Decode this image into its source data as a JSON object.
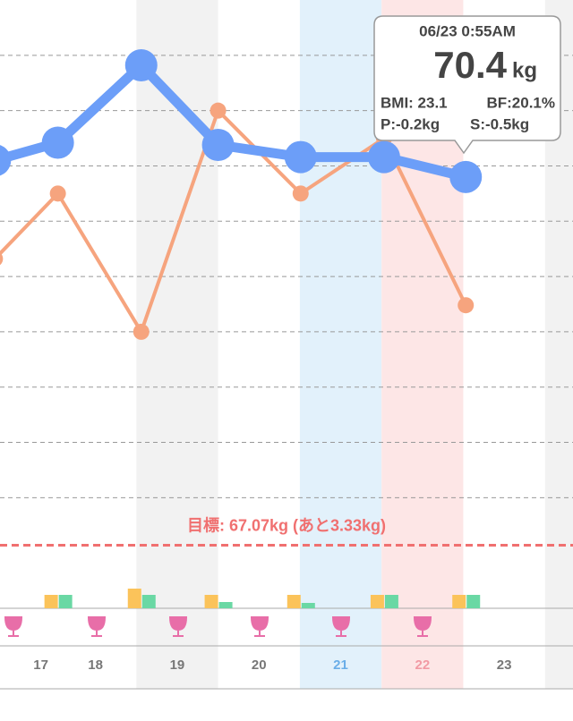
{
  "chart_data": {
    "type": "line",
    "x": [
      17.27,
      18.04,
      19.06,
      20.0,
      21.01,
      22.03,
      23.03
    ],
    "xlim": [
      17.332,
      24.342
    ],
    "xticks": [
      {
        "value": 17.832,
        "label": "17"
      },
      {
        "value": 18.5,
        "label": "18"
      },
      {
        "value": 19.5,
        "label": "19"
      },
      {
        "value": 20.5,
        "label": "20"
      },
      {
        "value": 21.5,
        "label": "21"
      },
      {
        "value": 22.5,
        "label": "22"
      },
      {
        "value": 23.5,
        "label": "23"
      }
    ],
    "xtick_colors": [
      "#777777",
      "#777777",
      "#777777",
      "#777777",
      "#6aaee8",
      "#f29aa4",
      "#777777"
    ],
    "ylim": [
      66.5,
      72.0
    ],
    "yticks": [
      67.5,
      68.0,
      68.5,
      69.0,
      69.5,
      70.0,
      70.5,
      71.0,
      71.5
    ],
    "grid": true,
    "series": [
      {
        "color": "#f6a47e",
        "values": [
          69.66,
          70.25,
          69.0,
          71.0,
          70.25,
          70.75,
          69.24
        ]
      },
      {
        "color": "#6c9ef8",
        "values": [
          70.55,
          70.71,
          71.41,
          70.69,
          70.58,
          70.58,
          70.4
        ]
      }
    ],
    "goal": {
      "value": 67.07,
      "label": "目標: 67.07kg (あと3.33kg)",
      "color": "#f07070"
    },
    "sub_bars": {
      "x": [
        18.04,
        19.06,
        20.0,
        21.01,
        22.03,
        23.03
      ],
      "ylim": [
        0,
        100
      ],
      "series": [
        {
          "color": "#fbc35a",
          "values": [
            15,
            22,
            15,
            15,
            15,
            15
          ]
        },
        {
          "color": "#6ad8a4",
          "values": [
            15,
            15,
            7,
            6,
            15,
            15
          ]
        }
      ]
    },
    "tooltip": {
      "date": "06/23 0:55AM",
      "weight": "70.4",
      "unit": "kg",
      "bmi": "BMI: 23.1",
      "bf": "BF:20.1%",
      "p": "P:-0.2kg",
      "s": "S:-0.5kg"
    }
  }
}
